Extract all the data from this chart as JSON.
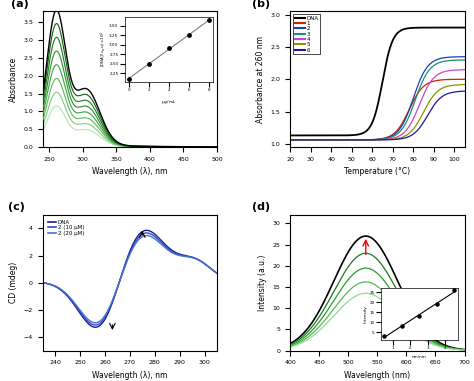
{
  "panel_a": {
    "title": "(a)",
    "xlabel": "Wavelength (λ), nm",
    "ylabel": "Absorbance",
    "xlim": [
      240,
      500
    ],
    "ylim": [
      0,
      3.8
    ],
    "n_curves": 8,
    "greens": [
      "#000000",
      "#0d5c0d",
      "#1a7a1a",
      "#2e8b2e",
      "#3da03d",
      "#5aba5a",
      "#82cc82",
      "#b0e8b0"
    ]
  },
  "panel_b": {
    "title": "(b)",
    "xlabel": "Temperature (°C)",
    "ylabel": "Absorbance at 260 nm",
    "xlim": [
      20,
      105
    ],
    "ylim": [
      0.95,
      3.05
    ],
    "yticks": [
      1.0,
      1.5,
      2.0,
      2.5,
      3.0
    ],
    "xticks": [
      20,
      30,
      40,
      50,
      60,
      70,
      80,
      90,
      100
    ],
    "legend_labels": [
      "DNA",
      "1",
      "2",
      "3",
      "4",
      "5",
      "6"
    ],
    "legend_colors": [
      "#000000",
      "#cc2200",
      "#1e40b0",
      "#1a9070",
      "#cc44cc",
      "#909000",
      "#1a1a99"
    ],
    "tms": [
      65,
      78,
      80,
      81,
      83,
      85,
      87
    ],
    "highs": [
      2.8,
      2.0,
      2.35,
      2.3,
      2.15,
      1.92,
      1.82
    ],
    "lows": [
      1.13,
      1.06,
      1.06,
      1.06,
      1.06,
      1.06,
      1.06
    ],
    "steeps": [
      2.5,
      3.5,
      3.5,
      3.5,
      3.5,
      3.5,
      3.5
    ]
  },
  "panel_c": {
    "title": "(c)",
    "xlabel": "Wavelength (λ), nm",
    "ylabel": "CD (mdeg)",
    "xlim": [
      235,
      305
    ],
    "ylim": [
      -5,
      5
    ],
    "yticks": [
      -4,
      -2,
      0,
      2,
      4
    ],
    "legend_labels": [
      "DNA",
      "2 (10 μM)",
      "2 (20 μM)"
    ],
    "legend_colors": [
      "#1a1a99",
      "#2b50b8",
      "#4a6fd4"
    ],
    "scales": [
      1.0,
      0.95,
      0.9
    ]
  },
  "panel_d": {
    "title": "(d)",
    "xlabel": "Wavelength (nm)",
    "ylabel": "Intensity (a.u.)",
    "xlim": [
      400,
      700
    ],
    "ylim": [
      0,
      32
    ],
    "yticks": [
      0,
      5,
      10,
      15,
      20,
      25,
      30
    ],
    "n_curves": 5,
    "colors": [
      "#000000",
      "#1a7a1a",
      "#2e9a2e",
      "#55bb55",
      "#90dd90"
    ],
    "scales": [
      1.0,
      0.85,
      0.72,
      0.6,
      0.5
    ]
  }
}
